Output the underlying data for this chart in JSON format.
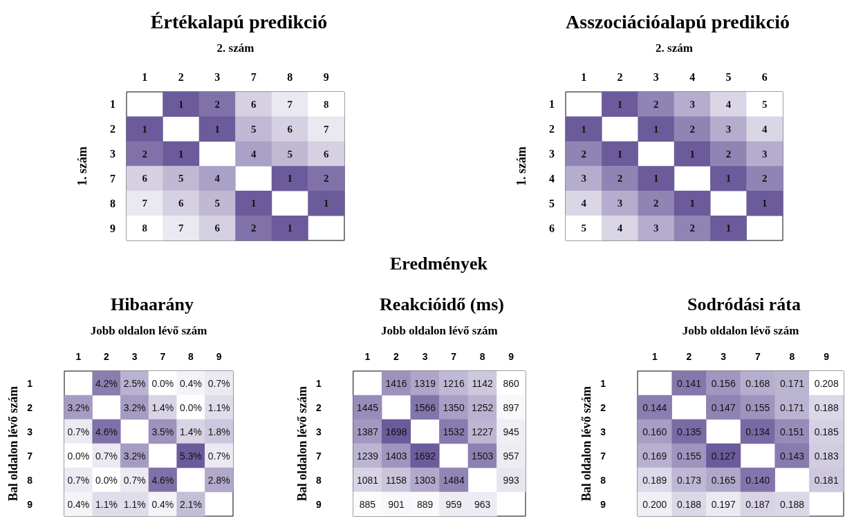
{
  "chart_data": [
    {
      "type": "heatmap",
      "title": "Értékalapú predikció",
      "xlabel": "2. szám",
      "ylabel": "1. szám",
      "categories": [
        "1",
        "2",
        "3",
        "7",
        "8",
        "9"
      ],
      "y_categories": [
        "1",
        "2",
        "3",
        "7",
        "8",
        "9"
      ],
      "data_labels": true,
      "cells": [
        [
          null,
          1,
          2,
          6,
          7,
          8
        ],
        [
          1,
          null,
          1,
          5,
          6,
          7
        ],
        [
          2,
          1,
          null,
          4,
          5,
          6
        ],
        [
          6,
          5,
          4,
          null,
          1,
          2
        ],
        [
          7,
          6,
          5,
          1,
          null,
          1
        ],
        [
          8,
          7,
          6,
          2,
          1,
          null
        ]
      ]
    },
    {
      "type": "heatmap",
      "title": "Asszociációalapú predikció",
      "xlabel": "2. szám",
      "ylabel": "1. szám",
      "categories": [
        "1",
        "2",
        "3",
        "4",
        "5",
        "6"
      ],
      "y_categories": [
        "1",
        "2",
        "3",
        "4",
        "5",
        "6"
      ],
      "data_labels": true,
      "cells": [
        [
          null,
          1,
          2,
          3,
          4,
          5
        ],
        [
          1,
          null,
          1,
          2,
          3,
          4
        ],
        [
          2,
          1,
          null,
          1,
          2,
          3
        ],
        [
          3,
          2,
          1,
          null,
          1,
          2
        ],
        [
          4,
          3,
          2,
          1,
          null,
          1
        ],
        [
          5,
          4,
          3,
          2,
          1,
          null
        ]
      ]
    },
    {
      "type": "heatmap",
      "title": "Hibaarány",
      "xlabel": "Jobb oldalon lévő szám",
      "ylabel": "Bal oldalon lévő szám",
      "categories": [
        "1",
        "2",
        "3",
        "7",
        "8",
        "9"
      ],
      "y_categories": [
        "1",
        "2",
        "3",
        "7",
        "8",
        "9"
      ],
      "cells": [
        [
          null,
          4.2,
          2.5,
          0.0,
          0.4,
          0.7
        ],
        [
          3.2,
          null,
          3.2,
          1.4,
          0.0,
          1.1
        ],
        [
          0.7,
          4.6,
          null,
          3.5,
          1.4,
          1.8
        ],
        [
          0.0,
          0.7,
          3.2,
          null,
          5.3,
          0.7
        ],
        [
          0.7,
          0.0,
          0.7,
          4.6,
          null,
          2.8
        ],
        [
          0.4,
          1.1,
          1.1,
          0.4,
          2.1,
          null
        ]
      ],
      "cell_labels": [
        [
          null,
          "4.2%",
          "2.5%",
          "0.0%",
          "0.4%",
          "0.7%"
        ],
        [
          "3.2%",
          null,
          "3.2%",
          "1.4%",
          "0.0%",
          "1.1%"
        ],
        [
          "0.7%",
          "4.6%",
          null,
          "3.5%",
          "1.4%",
          "1.8%"
        ],
        [
          "0.0%",
          "0.7%",
          "3.2%",
          null,
          "5.3%",
          "0.7%"
        ],
        [
          "0.7%",
          "0.0%",
          "0.7%",
          "4.6%",
          null,
          "2.8%"
        ],
        [
          "0.4%",
          "1.1%",
          "1.1%",
          "0.4%",
          "2.1%",
          null
        ]
      ]
    },
    {
      "type": "heatmap",
      "title": "Reakcióidő (ms)",
      "annotations": [
        "Eredmények"
      ],
      "xlabel": "Jobb oldalon lévő szám",
      "ylabel": "Bal oldalon lévő szám",
      "categories": [
        "1",
        "2",
        "3",
        "7",
        "8",
        "9"
      ],
      "y_categories": [
        "1",
        "2",
        "3",
        "7",
        "8",
        "9"
      ],
      "data_labels": true,
      "cells": [
        [
          null,
          1416,
          1319,
          1216,
          1142,
          860
        ],
        [
          1445,
          null,
          1566,
          1350,
          1252,
          897
        ],
        [
          1387,
          1698,
          null,
          1532,
          1227,
          945
        ],
        [
          1239,
          1403,
          1692,
          null,
          1503,
          957
        ],
        [
          1081,
          1158,
          1303,
          1484,
          null,
          993
        ],
        [
          885,
          901,
          889,
          959,
          963,
          null
        ]
      ]
    },
    {
      "type": "heatmap",
      "title": "Sodródási ráta",
      "xlabel": "Jobb oldalon lévő szám",
      "ylabel": "Bal oldalon lévő szám",
      "categories": [
        "1",
        "2",
        "3",
        "7",
        "8",
        "9"
      ],
      "y_categories": [
        "1",
        "2",
        "3",
        "7",
        "8",
        "9"
      ],
      "cells": [
        [
          null,
          0.141,
          0.156,
          0.168,
          0.171,
          0.208
        ],
        [
          0.144,
          null,
          0.147,
          0.155,
          0.171,
          0.188
        ],
        [
          0.16,
          0.135,
          null,
          0.134,
          0.151,
          0.185
        ],
        [
          0.169,
          0.155,
          0.127,
          null,
          0.143,
          0.183
        ],
        [
          0.189,
          0.173,
          0.165,
          0.14,
          null,
          0.181
        ],
        [
          0.2,
          0.188,
          0.197,
          0.187,
          0.188,
          null
        ]
      ],
      "cell_labels": [
        [
          null,
          "0.141",
          "0.156",
          "0.168",
          "0.171",
          "0.208"
        ],
        [
          "0.144",
          null,
          "0.147",
          "0.155",
          "0.171",
          "0.188"
        ],
        [
          "0.160",
          "0.135",
          null,
          "0.134",
          "0.151",
          "0.185"
        ],
        [
          "0.169",
          "0.155",
          "0.127",
          null,
          "0.143",
          "0.183"
        ],
        [
          "0.189",
          "0.173",
          "0.165",
          "0.140",
          null,
          "0.181"
        ],
        [
          "0.200",
          "0.188",
          "0.197",
          "0.187",
          "0.188",
          null
        ]
      ]
    }
  ]
}
